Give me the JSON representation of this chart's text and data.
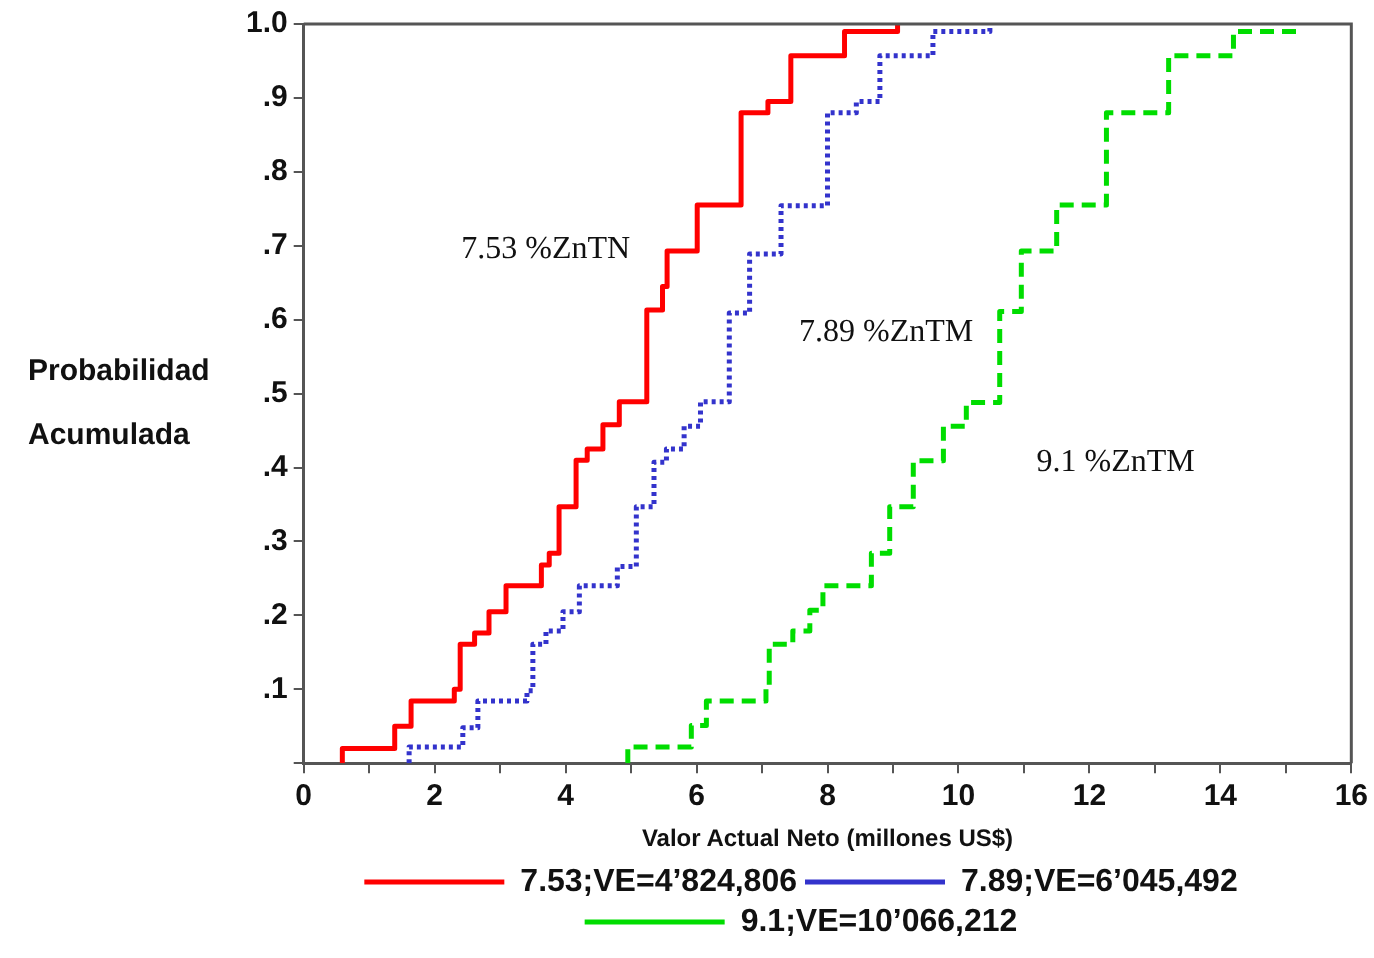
{
  "chart_data": {
    "type": "step",
    "ylabel": "Probabilidad Acumulada",
    "xlabel": "Valor Actual Neto (millones US$)",
    "series": [
      {
        "name": "7.53;VE=4’824,806",
        "color": "#ff0000",
        "line_style": "solid",
        "x": [
          0.59,
          0.59,
          1.39,
          1.64,
          2.3,
          2.39,
          2.61,
          2.83,
          3.09,
          3.63,
          3.75,
          3.9,
          4.16,
          4.33,
          4.57,
          4.82,
          5.24,
          5.48,
          5.55,
          6.01,
          6.68,
          7.09,
          7.44,
          8.26,
          9.07
        ],
        "values": [
          0,
          0.02,
          0.05,
          0.084,
          0.1,
          0.161,
          0.176,
          0.205,
          0.24,
          0.268,
          0.284,
          0.347,
          0.41,
          0.425,
          0.458,
          0.489,
          0.613,
          0.645,
          0.693,
          0.755,
          0.88,
          0.895,
          0.957,
          0.99,
          1.0
        ]
      },
      {
        "name": "7.89;VE=6’045,492",
        "color": "#3333cc",
        "line_style": "dotted",
        "x": [
          1.61,
          1.61,
          2.43,
          2.66,
          3.41,
          3.5,
          3.7,
          3.96,
          4.21,
          4.79,
          5.08,
          5.35,
          5.54,
          5.81,
          6.06,
          6.5,
          6.81,
          7.29,
          8.0,
          8.44,
          8.8,
          9.61,
          10.48
        ],
        "values": [
          0,
          0.022,
          0.048,
          0.084,
          0.098,
          0.161,
          0.179,
          0.205,
          0.24,
          0.266,
          0.347,
          0.407,
          0.425,
          0.456,
          0.489,
          0.609,
          0.689,
          0.754,
          0.88,
          0.895,
          0.957,
          0.99,
          1.0
        ]
      },
      {
        "name": "9.1;VE=10’066,212",
        "color": "#00dd00",
        "line_style": "dashed",
        "x": [
          4.95,
          4.95,
          5.92,
          6.15,
          7.06,
          7.11,
          7.47,
          7.73,
          7.93,
          8.67,
          8.95,
          9.31,
          9.77,
          10.12,
          10.63,
          10.96,
          11.5,
          12.26,
          13.21,
          14.2,
          15.17
        ],
        "values": [
          0,
          0.022,
          0.051,
          0.084,
          0.1,
          0.161,
          0.179,
          0.207,
          0.24,
          0.284,
          0.347,
          0.409,
          0.456,
          0.488,
          0.611,
          0.693,
          0.755,
          0.88,
          0.957,
          0.99,
          1.0
        ]
      }
    ],
    "xlim": [
      0,
      16
    ],
    "ylim": [
      0,
      1
    ],
    "xticks": [
      0,
      {
        "value": 1,
        "label": null
      },
      2,
      {
        "value": 3,
        "label": null
      },
      4,
      {
        "value": 5,
        "label": null
      },
      6,
      {
        "value": 7,
        "label": null
      },
      8,
      {
        "value": 9,
        "label": null
      },
      10,
      {
        "value": 11,
        "label": null
      },
      12,
      {
        "value": 13,
        "label": null
      },
      14,
      {
        "value": 15,
        "label": null
      },
      16
    ],
    "yticks": [
      {
        "value": 0,
        "label": null
      },
      {
        "value": 0.1,
        "label": ".1"
      },
      {
        "value": 0.2,
        "label": ".2"
      },
      {
        "value": 0.3,
        "label": ".3"
      },
      {
        "value": 0.4,
        "label": ".4"
      },
      {
        "value": 0.5,
        "label": ".5"
      },
      {
        "value": 0.6,
        "label": ".6"
      },
      {
        "value": 0.7,
        "label": ".7"
      },
      {
        "value": 0.8,
        "label": ".8"
      },
      {
        "value": 0.9,
        "label": ".9"
      },
      {
        "value": 1.0,
        "label": "1.0"
      }
    ],
    "annotations": [
      "7.53 %ZnTN",
      "7.89 %ZnTM",
      "9.1 %ZnTM"
    ],
    "grid": false,
    "legend": "bottom",
    "marker": "none"
  }
}
